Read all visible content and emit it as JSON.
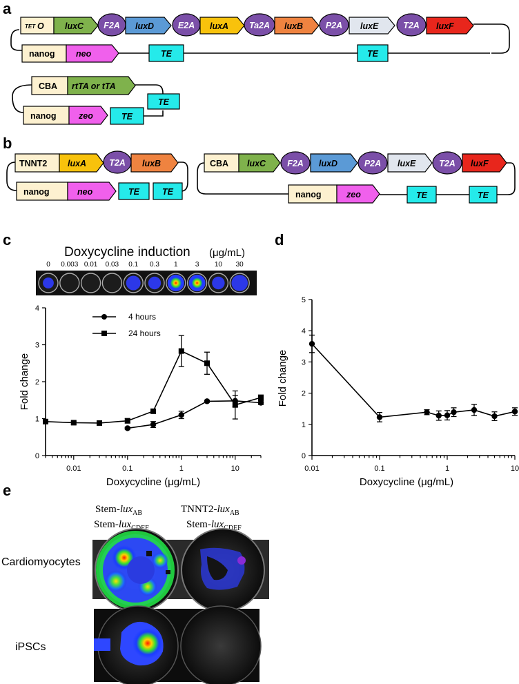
{
  "panels": {
    "a": "a",
    "b": "b",
    "c": "c",
    "d": "d",
    "e": "e"
  },
  "colors": {
    "promoter": "#fdf1d0",
    "green": "#7fb24c",
    "purple": "#7b4fa8",
    "blue": "#5b9ad6",
    "yellow": "#f8c20c",
    "orange": "#ef8340",
    "gray": "#e1e6ee",
    "red": "#e8261c",
    "magenta": "#f060ec",
    "cyan": "#25eaea"
  },
  "construct_a1": {
    "tet_o_sub": "TET",
    "tet_o_main": "O",
    "luxC": "luxC",
    "f2a": "F2A",
    "luxD": "luxD",
    "e2a": "E2A",
    "luxA": "luxA",
    "ta2a": "Ta2A",
    "luxB": "luxB",
    "p2a": "P2A",
    "luxE": "luxE",
    "t2a": "T2A",
    "luxF": "luxF",
    "nanog": "nanog",
    "neo": "neo",
    "te1": "TE",
    "te2": "TE"
  },
  "construct_a2": {
    "cba": "CBA",
    "rtta": "rtTA or tTA",
    "te_top": "TE",
    "nanog": "nanog",
    "zeo": "zeo",
    "te": "TE"
  },
  "construct_b1": {
    "tnnt2": "TNNT2",
    "luxA": "luxA",
    "t2a": "T2A",
    "luxB": "luxB",
    "nanog": "nanog",
    "neo": "neo",
    "te1": "TE",
    "te2": "TE"
  },
  "construct_b2": {
    "cba": "CBA",
    "luxC": "luxC",
    "f2a": "F2A",
    "luxD": "luxD",
    "p2a": "P2A",
    "luxE": "luxE",
    "t2a": "T2A",
    "luxF": "luxF",
    "nanog": "nanog",
    "zeo": "zeo",
    "te1": "TE",
    "te2": "TE"
  },
  "panel_c_image": {
    "title": "Doxycycline induction",
    "unit": "(μg/mL)",
    "concentrations": [
      "0",
      "0.003",
      "0.01",
      "0.03",
      "0.1",
      "0.3",
      "1",
      "3",
      "10",
      "30"
    ],
    "signal": [
      0.15,
      0.0,
      0.0,
      0.0,
      0.25,
      0.2,
      1.0,
      0.95,
      0.2,
      0.3
    ]
  },
  "chart_data": [
    {
      "type": "line",
      "xlabel": "Doxycycline (μg/mL)",
      "ylabel": "Fold change",
      "xscale": "log",
      "xlim": [
        0.003,
        30
      ],
      "ylim": [
        0,
        4
      ],
      "xticks": [
        0.01,
        0.1,
        1,
        10
      ],
      "xtick_labels": [
        "0.01",
        "0.1",
        "1",
        "10"
      ],
      "yticks": [
        0,
        1,
        2,
        3,
        4
      ],
      "ytick_labels": [
        "0",
        "1",
        "2",
        "3",
        "4"
      ],
      "legend_position": "upper-left",
      "series": [
        {
          "name": "4 hours",
          "marker": "circle",
          "x": [
            0.1,
            0.3,
            1,
            3,
            10,
            30
          ],
          "y": [
            0.74,
            0.84,
            1.1,
            1.47,
            1.48,
            1.43
          ],
          "err": [
            0.03,
            0.08,
            0.1,
            0.03,
            0.15,
            0.05
          ]
        },
        {
          "name": "24 hours",
          "marker": "square",
          "x": [
            0.003,
            0.01,
            0.03,
            0.1,
            0.3,
            1,
            3,
            10,
            30
          ],
          "y": [
            0.92,
            0.89,
            0.88,
            0.94,
            1.2,
            2.83,
            2.5,
            1.37,
            1.57
          ],
          "err": [
            0.05,
            0.04,
            0.05,
            0.06,
            0.05,
            0.42,
            0.3,
            0.38,
            0.07
          ]
        }
      ]
    },
    {
      "type": "line",
      "xlabel": "Doxycycline (μg/mL)",
      "ylabel": "Fold change",
      "xscale": "log",
      "xlim": [
        0.01,
        10
      ],
      "ylim": [
        0,
        5
      ],
      "xticks": [
        0.01,
        0.1,
        1,
        10
      ],
      "xtick_labels": [
        "0.01",
        "0.1",
        "1",
        "10"
      ],
      "yticks": [
        0,
        1,
        2,
        3,
        4,
        5
      ],
      "ytick_labels": [
        "0",
        "1",
        "2",
        "3",
        "4",
        "5"
      ],
      "series": [
        {
          "marker": "circle",
          "x": [
            0.01,
            0.1,
            0.5,
            0.75,
            1,
            1.25,
            2.5,
            5,
            10
          ],
          "y": [
            3.58,
            1.23,
            1.39,
            1.28,
            1.29,
            1.39,
            1.46,
            1.26,
            1.41
          ],
          "err": [
            0.28,
            0.15,
            0.08,
            0.15,
            0.15,
            0.14,
            0.18,
            0.14,
            0.12
          ]
        }
      ]
    }
  ],
  "panel_e": {
    "col1_line1_a": "Stem-",
    "col1_line1_b": "lux",
    "col1_line1_sub": "AB",
    "col1_line2_a": "Stem-",
    "col1_line2_b": "lux",
    "col1_line2_sub": "CDEF",
    "col2_line1_a": "TNNT2-",
    "col2_line1_b": "lux",
    "col2_line1_sub": "AB",
    "col2_line2_a": "Stem-",
    "col2_line2_b": "lux",
    "col2_line2_sub": "CDEF",
    "row1": "Cardiomyocytes",
    "row2": "iPSCs"
  }
}
